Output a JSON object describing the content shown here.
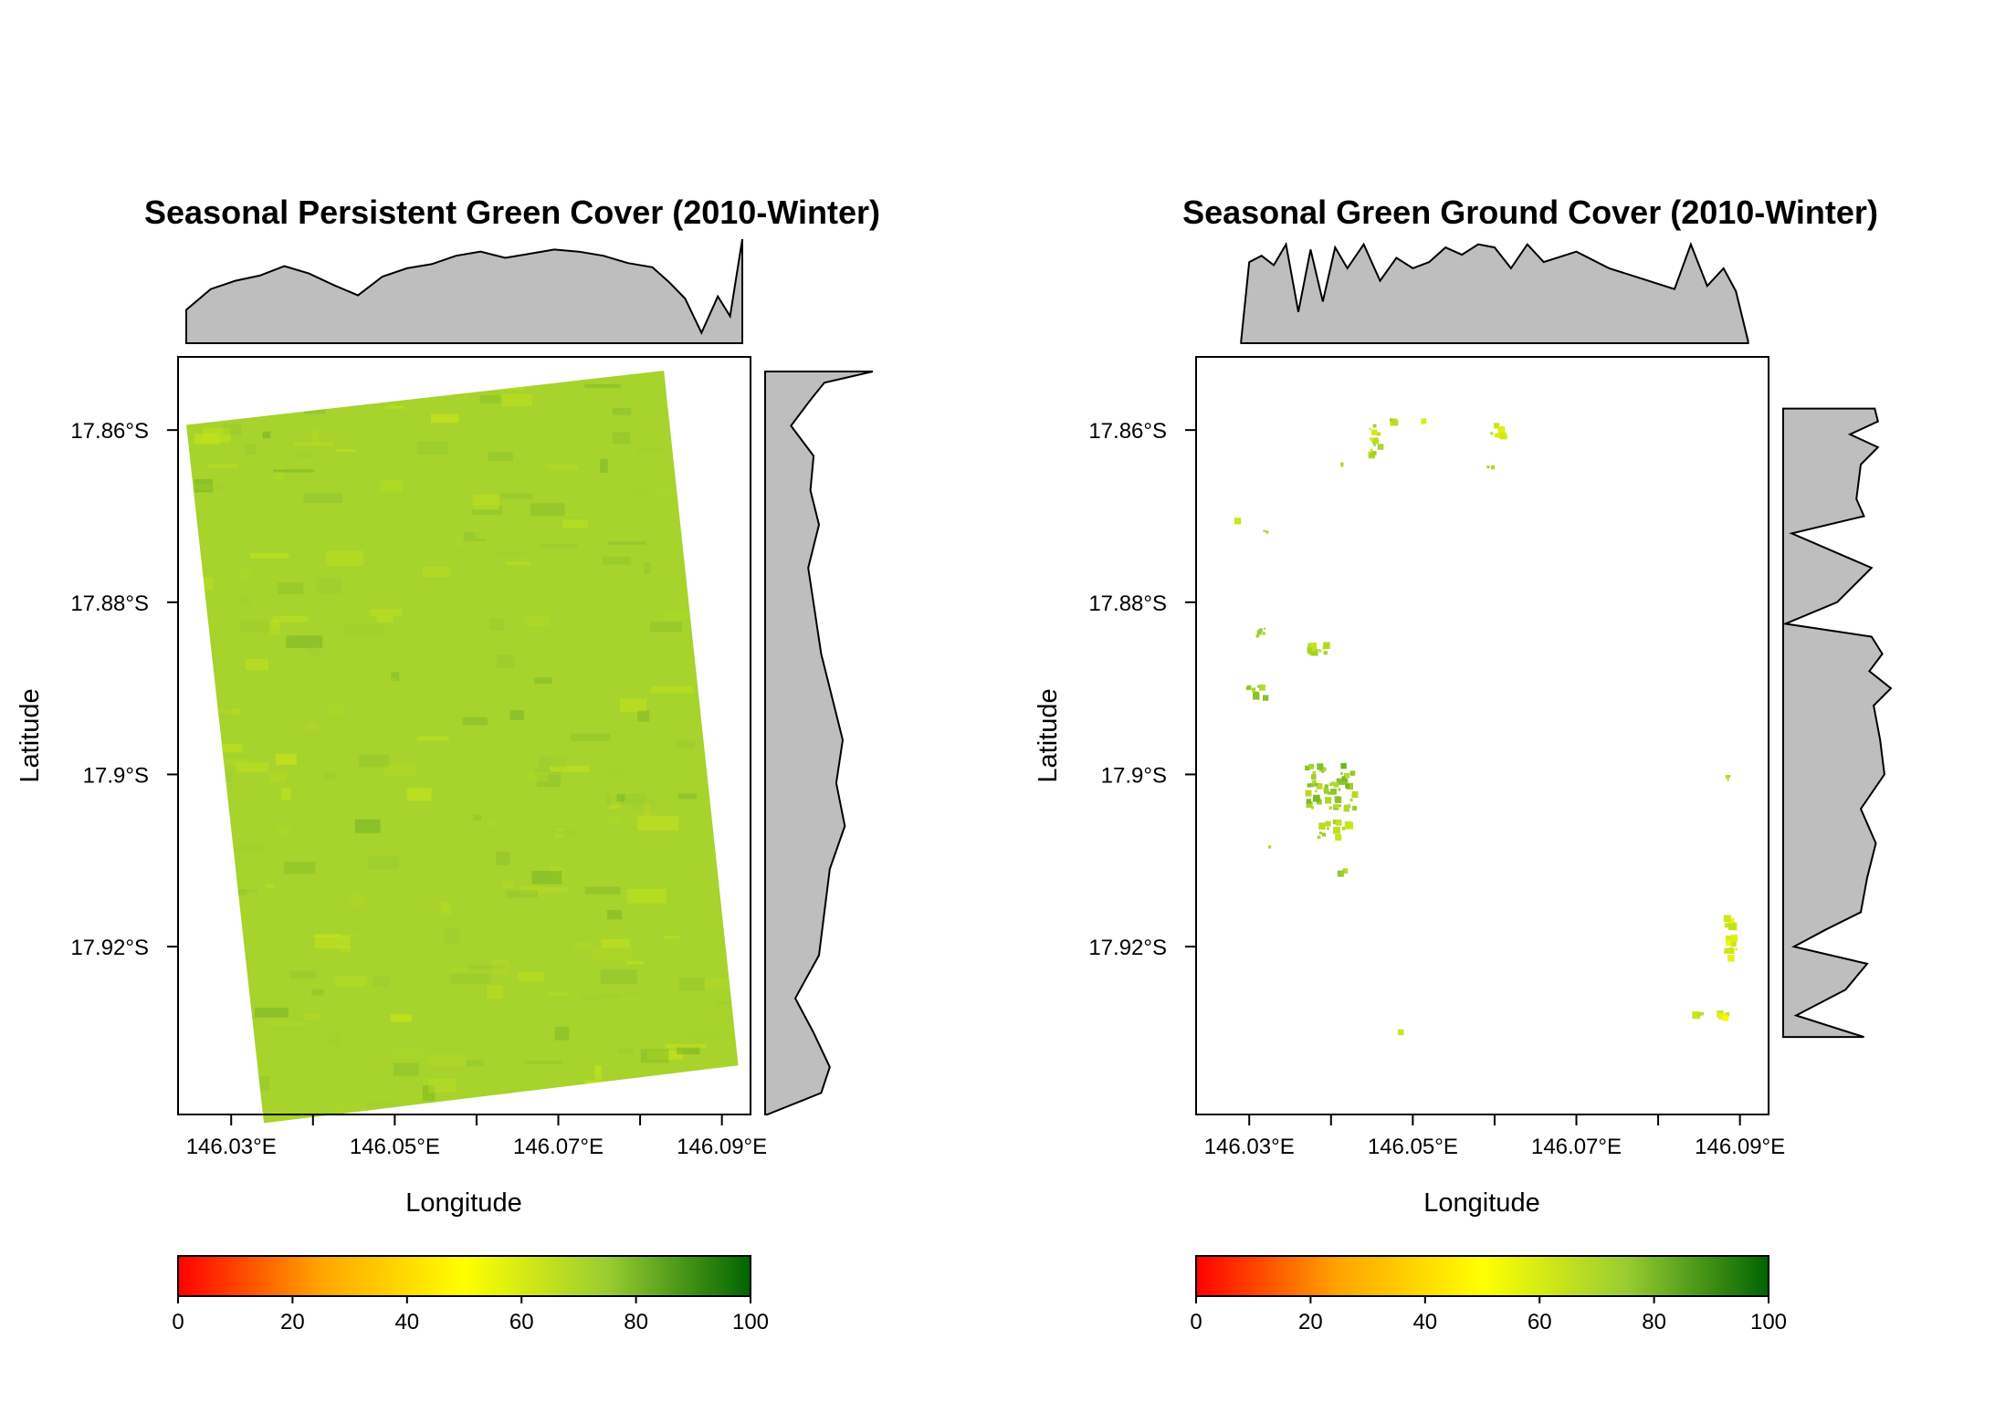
{
  "chart_data": [
    {
      "type": "heatmap",
      "title": "Seasonal Persistent Green Cover (2010-Winter)",
      "xlabel": "Longitude",
      "ylabel": "Latitude",
      "x_ticks": [
        "146.03°E",
        "146.05°E",
        "146.07°E",
        "146.09°E"
      ],
      "x_tick_values": [
        146.03,
        146.05,
        146.07,
        146.09
      ],
      "y_ticks": [
        "17.86°S",
        "17.88°S",
        "17.9°S",
        "17.92°S"
      ],
      "y_tick_values": [
        -17.86,
        -17.88,
        -17.9,
        -17.92
      ],
      "xlim": [
        146.0235,
        146.0935
      ],
      "ylim": [
        -17.9395,
        -17.8515
      ],
      "legend": {
        "position": "bottom",
        "range": [
          0,
          100
        ],
        "ticks": [
          "0",
          "20",
          "40",
          "60",
          "80",
          "100"
        ],
        "tick_values": [
          0,
          20,
          40,
          60,
          80,
          100
        ],
        "colors": [
          "#ff0000",
          "#ffa500",
          "#ffff00",
          "#9acd32",
          "#006400"
        ]
      },
      "raster": {
        "corners_lon_lat": [
          [
            146.0245,
            -17.8594
          ],
          [
            146.0829,
            -17.8531
          ],
          [
            146.092,
            -17.9338
          ],
          [
            146.034,
            -17.9405
          ]
        ],
        "mean_value": 72,
        "dominant_color": "#9fc41b"
      },
      "x_marginal": {
        "lon": [
          146.0245,
          146.0275,
          146.0305,
          146.0335,
          146.0365,
          146.0395,
          146.0425,
          146.0455,
          146.0485,
          146.0515,
          146.0545,
          146.0575,
          146.0605,
          146.0635,
          146.0665,
          146.0695,
          146.0725,
          146.0755,
          146.0785,
          146.0815,
          146.0835,
          146.0855,
          146.0875,
          146.0895,
          146.091,
          146.0925
        ],
        "value": [
          0.32,
          0.52,
          0.6,
          0.65,
          0.74,
          0.67,
          0.56,
          0.46,
          0.64,
          0.72,
          0.76,
          0.84,
          0.88,
          0.82,
          0.86,
          0.9,
          0.88,
          0.84,
          0.77,
          0.73,
          0.59,
          0.43,
          0.1,
          0.45,
          0.26,
          1.0
        ]
      },
      "y_marginal": {
        "lat": [
          -17.8532,
          -17.8545,
          -17.8565,
          -17.8595,
          -17.863,
          -17.867,
          -17.871,
          -17.876,
          -17.881,
          -17.886,
          -17.891,
          -17.896,
          -17.901,
          -17.906,
          -17.911,
          -17.916,
          -17.921,
          -17.926,
          -17.93,
          -17.934,
          -17.937,
          -17.9395
        ],
        "value": [
          1.0,
          0.55,
          0.42,
          0.24,
          0.45,
          0.42,
          0.5,
          0.4,
          0.46,
          0.52,
          0.62,
          0.72,
          0.66,
          0.74,
          0.6,
          0.55,
          0.5,
          0.28,
          0.45,
          0.6,
          0.52,
          0.02
        ]
      }
    },
    {
      "type": "heatmap",
      "title": "Seasonal Green Ground Cover (2010-Winter)",
      "xlabel": "Longitude",
      "ylabel": "Latitude",
      "x_ticks": [
        "146.03°E",
        "146.05°E",
        "146.07°E",
        "146.09°E"
      ],
      "x_tick_values": [
        146.03,
        146.05,
        146.07,
        146.09
      ],
      "y_ticks": [
        "17.86°S",
        "17.88°S",
        "17.9°S",
        "17.92°S"
      ],
      "y_tick_values": [
        -17.86,
        -17.88,
        -17.9,
        -17.92
      ],
      "xlim": [
        146.0235,
        146.0935
      ],
      "ylim": [
        -17.9395,
        -17.8515
      ],
      "legend": {
        "position": "bottom",
        "range": [
          0,
          100
        ],
        "ticks": [
          "0",
          "20",
          "40",
          "60",
          "80",
          "100"
        ],
        "tick_values": [
          0,
          20,
          40,
          60,
          80,
          100
        ],
        "colors": [
          "#ff0000",
          "#ffa500",
          "#ffff00",
          "#9acd32",
          "#006400"
        ]
      },
      "clusters": [
        {
          "lon": 146.04,
          "lat": -17.9015,
          "spread_lon": 0.003,
          "spread_lat": 0.0025,
          "count": 60,
          "value": 74
        },
        {
          "lon": 146.0405,
          "lat": -17.9065,
          "spread_lon": 0.002,
          "spread_lat": 0.001,
          "count": 14,
          "value": 70
        },
        {
          "lon": 146.0455,
          "lat": -17.861,
          "spread_lon": 0.0008,
          "spread_lat": 0.002,
          "count": 14,
          "value": 68
        },
        {
          "lon": 146.0475,
          "lat": -17.859,
          "spread_lon": 0.0004,
          "spread_lat": 0.0003,
          "count": 4,
          "value": 66
        },
        {
          "lon": 146.0515,
          "lat": -17.859,
          "spread_lon": 0.0002,
          "spread_lat": 0.0002,
          "count": 2,
          "value": 66
        },
        {
          "lon": 146.0605,
          "lat": -17.86,
          "spread_lon": 0.001,
          "spread_lat": 0.0008,
          "count": 8,
          "value": 62
        },
        {
          "lon": 146.0595,
          "lat": -17.8645,
          "spread_lon": 0.0003,
          "spread_lat": 0.0003,
          "count": 2,
          "value": 68
        },
        {
          "lon": 146.0415,
          "lat": -17.864,
          "spread_lon": 0.0003,
          "spread_lat": 0.0003,
          "count": 2,
          "value": 66
        },
        {
          "lon": 146.032,
          "lat": -17.872,
          "spread_lon": 0.0003,
          "spread_lat": 0.0004,
          "count": 3,
          "value": 72
        },
        {
          "lon": 146.0285,
          "lat": -17.8705,
          "spread_lon": 0.0001,
          "spread_lat": 0.0001,
          "count": 1,
          "value": 70
        },
        {
          "lon": 146.0315,
          "lat": -17.8835,
          "spread_lon": 0.0005,
          "spread_lat": 0.0005,
          "count": 5,
          "value": 70
        },
        {
          "lon": 146.0385,
          "lat": -17.885,
          "spread_lon": 0.0012,
          "spread_lat": 0.001,
          "count": 10,
          "value": 68
        },
        {
          "lon": 146.031,
          "lat": -17.8905,
          "spread_lon": 0.0012,
          "spread_lat": 0.0008,
          "count": 10,
          "value": 72
        },
        {
          "lon": 146.0885,
          "lat": -17.9005,
          "spread_lon": 0.0002,
          "spread_lat": 0.0004,
          "count": 3,
          "value": 70
        },
        {
          "lon": 146.089,
          "lat": -17.919,
          "spread_lon": 0.0006,
          "spread_lat": 0.0025,
          "count": 14,
          "value": 60
        },
        {
          "lon": 146.088,
          "lat": -17.928,
          "spread_lon": 0.0006,
          "spread_lat": 0.0004,
          "count": 6,
          "value": 58
        },
        {
          "lon": 146.085,
          "lat": -17.928,
          "spread_lon": 0.0004,
          "spread_lat": 0.0003,
          "count": 4,
          "value": 70
        },
        {
          "lon": 146.0415,
          "lat": -17.9115,
          "spread_lon": 0.0004,
          "spread_lat": 0.0003,
          "count": 2,
          "value": 74
        },
        {
          "lon": 146.0325,
          "lat": -17.9085,
          "spread_lon": 0.0001,
          "spread_lat": 0.0001,
          "count": 1,
          "value": 74
        },
        {
          "lon": 146.0485,
          "lat": -17.93,
          "spread_lon": 0.0001,
          "spread_lat": 0.0001,
          "count": 1,
          "value": 70
        }
      ],
      "x_marginal": {
        "lon": [
          146.029,
          146.03,
          146.0315,
          146.033,
          146.0345,
          146.036,
          146.0375,
          146.039,
          146.0405,
          146.042,
          146.044,
          146.046,
          146.048,
          146.05,
          146.052,
          146.054,
          146.056,
          146.058,
          146.06,
          146.062,
          146.064,
          146.066,
          146.07,
          146.074,
          146.078,
          146.082,
          146.084,
          146.086,
          146.088,
          146.0895,
          146.091
        ],
        "value": [
          0.02,
          0.78,
          0.84,
          0.75,
          0.95,
          0.3,
          0.9,
          0.4,
          0.92,
          0.72,
          0.95,
          0.6,
          0.82,
          0.72,
          0.78,
          0.92,
          0.85,
          0.95,
          0.92,
          0.72,
          0.95,
          0.78,
          0.88,
          0.72,
          0.62,
          0.52,
          0.95,
          0.55,
          0.72,
          0.5,
          0.02
        ]
      },
      "y_marginal": {
        "lat": [
          -17.8575,
          -17.859,
          -17.8605,
          -17.862,
          -17.864,
          -17.866,
          -17.868,
          -17.87,
          -17.872,
          -17.876,
          -17.88,
          -17.8825,
          -17.884,
          -17.886,
          -17.888,
          -17.89,
          -17.892,
          -17.896,
          -17.9,
          -17.904,
          -17.908,
          -17.912,
          -17.916,
          -17.918,
          -17.92,
          -17.922,
          -17.925,
          -17.928,
          -17.9305
        ],
        "value": [
          0.85,
          0.88,
          0.62,
          0.88,
          0.72,
          0.7,
          0.68,
          0.75,
          0.08,
          0.82,
          0.5,
          0.02,
          0.82,
          0.92,
          0.8,
          1.0,
          0.84,
          0.9,
          0.94,
          0.72,
          0.86,
          0.78,
          0.72,
          0.4,
          0.1,
          0.78,
          0.58,
          0.12,
          0.75
        ]
      }
    }
  ]
}
